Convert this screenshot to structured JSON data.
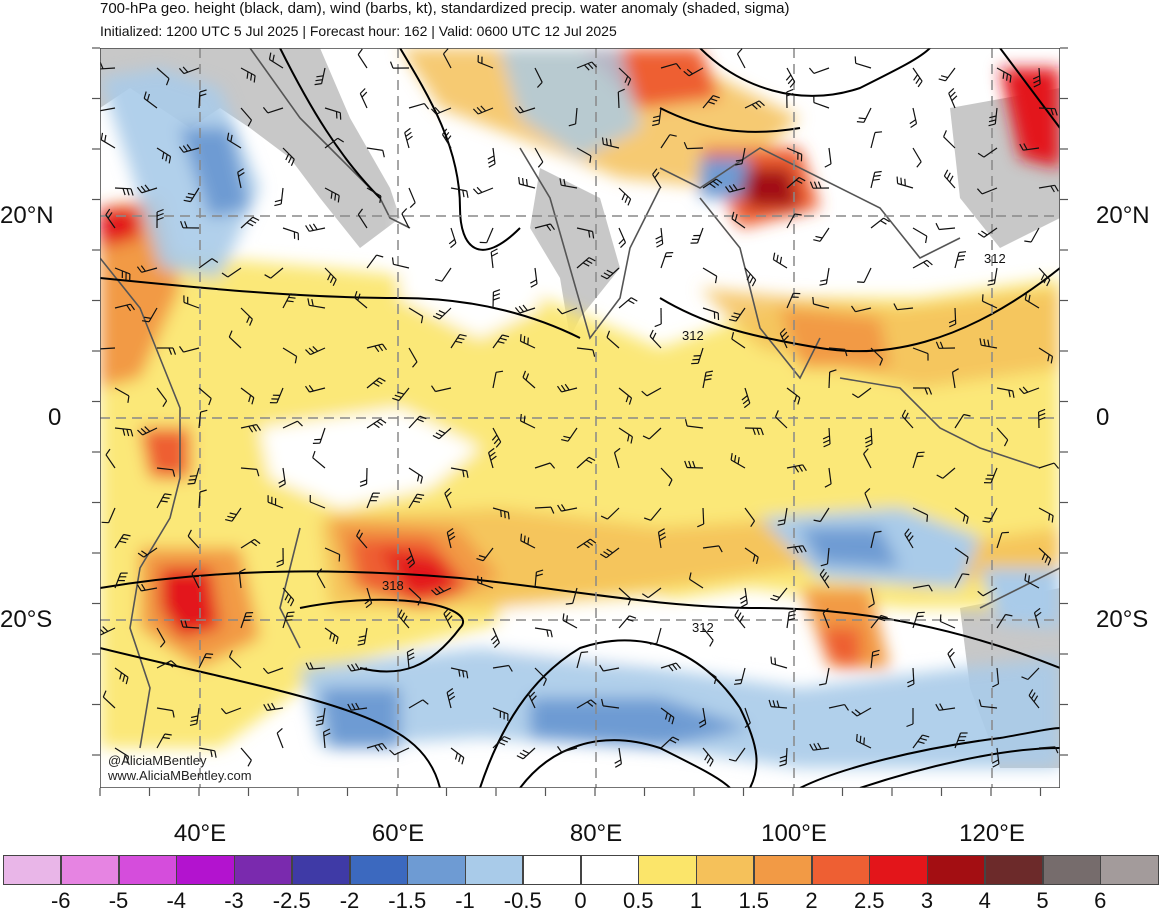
{
  "header": {
    "title": "700-hPa geo. height (black, dam), wind (barbs, kt), standardized precip. water anomaly (shaded, sigma)",
    "subtitle": "Initialized: 1200 UTC 5 Jul 2025 | Forecast hour: 162 | Valid: 0600 UTC 12 Jul 2025"
  },
  "map": {
    "lat_labels": [
      "20°N",
      "0",
      "20°S"
    ],
    "lon_labels": [
      "40°E",
      "60°E",
      "80°E",
      "100°E",
      "120°E"
    ],
    "contour_labels": [
      "312",
      "312",
      "318",
      "312"
    ],
    "credits": [
      "@AliciaMBentley",
      "www.AliciaMBentley.com"
    ]
  },
  "colorbar": {
    "ticks": [
      "-6",
      "-5",
      "-4",
      "-3",
      "-2.5",
      "-2",
      "-1.5",
      "-1",
      "-0.5",
      "0",
      "0.5",
      "1",
      "1.5",
      "2",
      "2.5",
      "3",
      "4",
      "5",
      "6"
    ],
    "colors": [
      "#e9b6e8",
      "#e684e2",
      "#d54ddc",
      "#b313cf",
      "#7a2aae",
      "#3f3aa6",
      "#3c69bf",
      "#6e9bd3",
      "#a9cbe9",
      "#ffffff",
      "#ffffff",
      "#fbe56a",
      "#f5c15a",
      "#f29a45",
      "#ee5f33",
      "#e3151a",
      "#a30e12",
      "#6c2a2a",
      "#766c6c",
      "#a39b9b"
    ]
  }
}
